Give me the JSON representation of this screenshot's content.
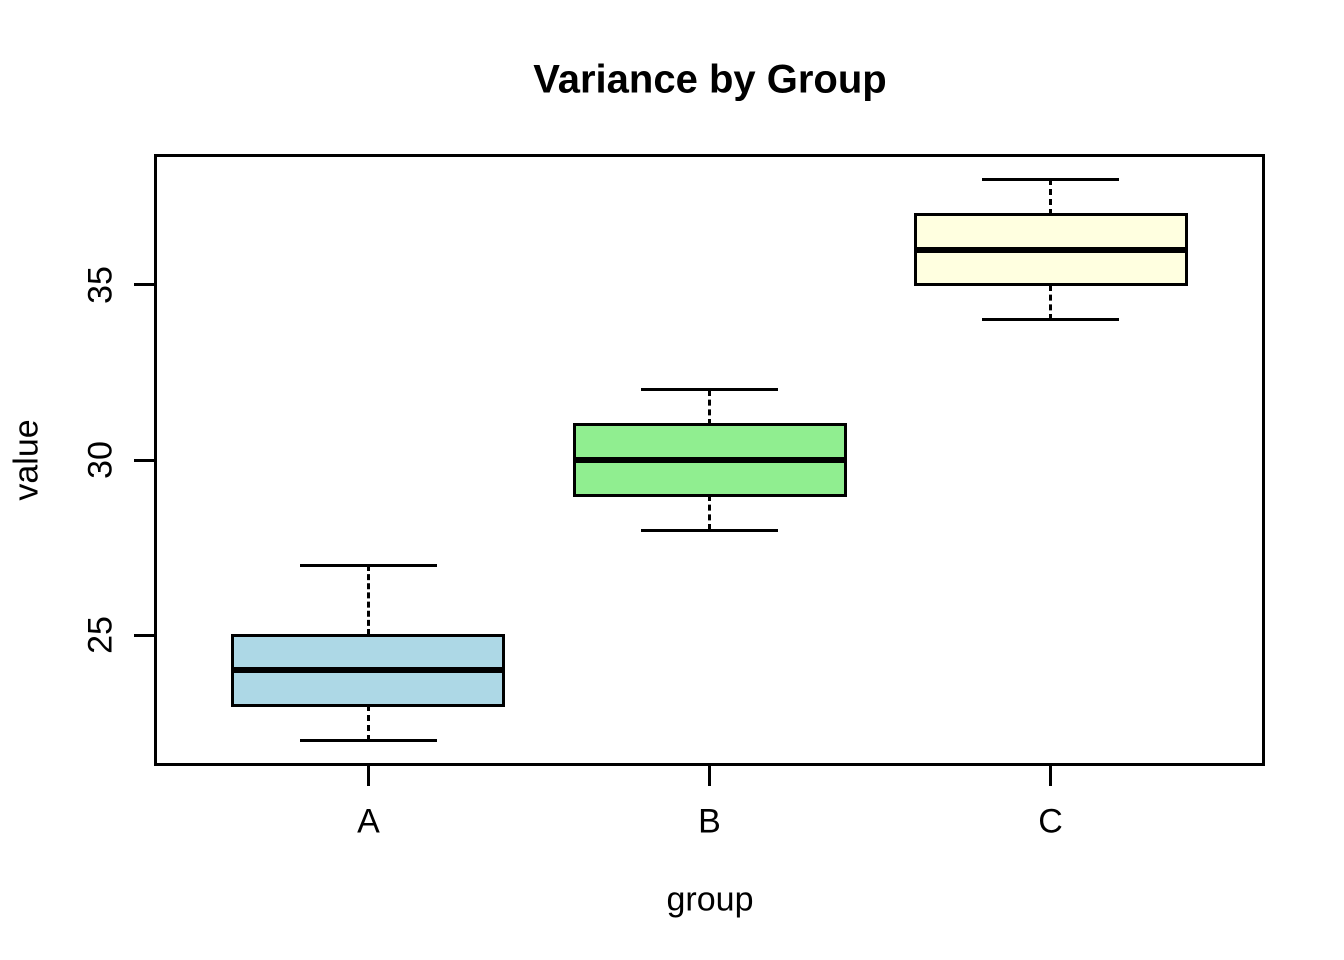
{
  "chart_data": {
    "type": "boxplot",
    "title": "Variance by Group",
    "xlabel": "group",
    "ylabel": "value",
    "categories": [
      "A",
      "B",
      "C"
    ],
    "positions": [
      1,
      2,
      3
    ],
    "xlim": [
      0.38,
      3.62
    ],
    "ylim": [
      21.36,
      38.64
    ],
    "y_ticks": [
      25,
      30,
      35
    ],
    "grid": false,
    "legend": "none",
    "series": [
      {
        "name": "A",
        "min": 22,
        "q1": 23,
        "median": 24,
        "q3": 25,
        "max": 27,
        "fill": "#ADD8E6"
      },
      {
        "name": "B",
        "min": 28,
        "q1": 29,
        "median": 30,
        "q3": 31,
        "max": 32,
        "fill": "#90EE90"
      },
      {
        "name": "C",
        "min": 34,
        "q1": 35,
        "median": 36,
        "q3": 37,
        "max": 38,
        "fill": "#FFFFE0"
      }
    ],
    "colors": {
      "axis": "#000000",
      "text": "#000000",
      "background": "#FFFFFF"
    }
  }
}
